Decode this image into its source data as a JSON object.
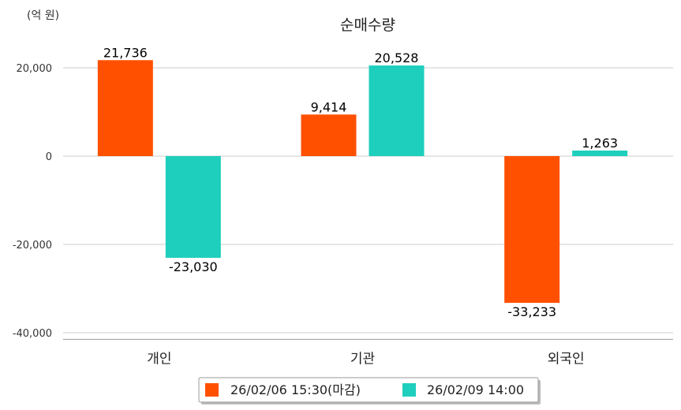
{
  "chart_data": {
    "type": "bar",
    "title": "순매수량",
    "unit_label": "(억 원)",
    "categories": [
      "개인",
      "기관",
      "외국인"
    ],
    "series": [
      {
        "name": "26/02/06 15:30(마감)",
        "color": "#ff5000",
        "values": [
          21736,
          9414,
          -33233
        ]
      },
      {
        "name": "26/02/09 14:00",
        "color": "#1ecfbd",
        "values": [
          -23030,
          20528,
          1263
        ]
      }
    ],
    "value_labels": [
      [
        "21,736",
        "9,414",
        "-33,233"
      ],
      [
        "-23,030",
        "20,528",
        "1,263"
      ]
    ],
    "y_ticks": [
      20000,
      0,
      -20000,
      -40000
    ],
    "y_tick_labels": [
      "20,000",
      "0",
      "-20,000",
      "-40,000"
    ],
    "ylim": [
      -41500,
      24000
    ],
    "grid": true,
    "legend_position": "bottom"
  }
}
